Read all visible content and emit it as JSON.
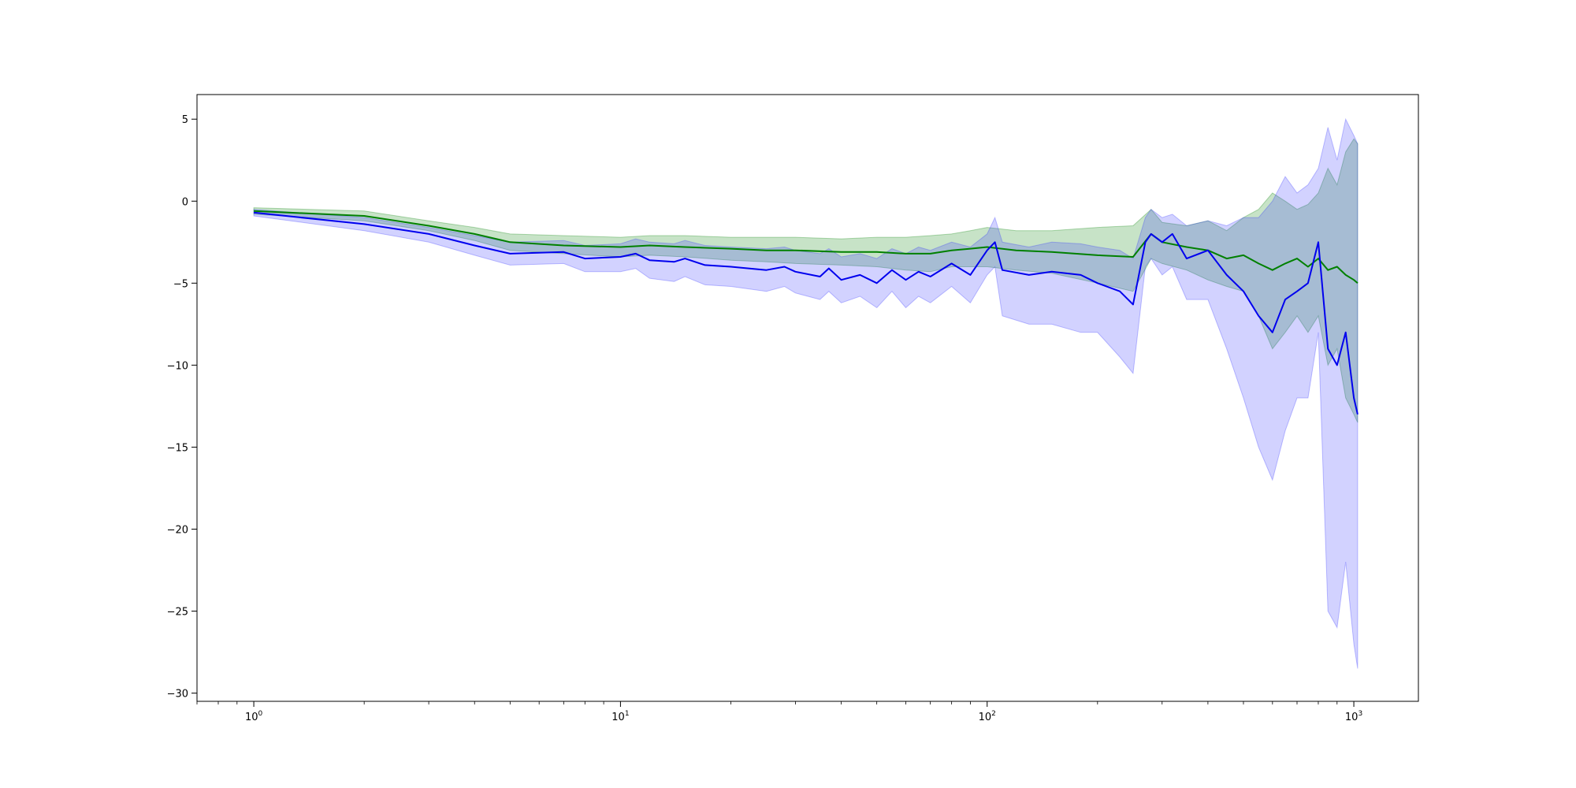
{
  "chart_data": {
    "type": "line",
    "title": "",
    "xlabel": "",
    "ylabel": "",
    "x_scale": "log",
    "xlim": [
      0.7,
      1500
    ],
    "ylim": [
      -30.5,
      6.5
    ],
    "x_ticks": [
      {
        "value": 1,
        "base": "10",
        "exp": "0"
      },
      {
        "value": 10,
        "base": "10",
        "exp": "1"
      },
      {
        "value": 100,
        "base": "10",
        "exp": "2"
      },
      {
        "value": 1000,
        "base": "10",
        "exp": "3"
      }
    ],
    "y_ticks": [
      {
        "value": 5,
        "label": "5"
      },
      {
        "value": 0,
        "label": "0"
      },
      {
        "value": -5,
        "label": "−5"
      },
      {
        "value": -10,
        "label": "−10"
      },
      {
        "value": -15,
        "label": "−15"
      },
      {
        "value": -20,
        "label": "−20"
      },
      {
        "value": -25,
        "label": "−25"
      },
      {
        "value": -30,
        "label": "−30"
      }
    ],
    "grid": false,
    "legend": "none",
    "series": [
      {
        "color": "#008000",
        "band_color": "#008000",
        "x": [
          1,
          2,
          3,
          4,
          5,
          7,
          10,
          12,
          15,
          20,
          25,
          30,
          40,
          50,
          60,
          70,
          80,
          90,
          100,
          120,
          150,
          200,
          250,
          280,
          300,
          350,
          400,
          450,
          500,
          550,
          600,
          650,
          700,
          750,
          800,
          850,
          900,
          950,
          1000,
          1024
        ],
        "y": [
          -0.6,
          -0.9,
          -1.5,
          -2.0,
          -2.5,
          -2.7,
          -2.8,
          -2.7,
          -2.8,
          -2.9,
          -3.0,
          -3.0,
          -3.1,
          -3.1,
          -3.2,
          -3.2,
          -3.0,
          -2.9,
          -2.8,
          -3.0,
          -3.1,
          -3.3,
          -3.4,
          -2.0,
          -2.5,
          -2.8,
          -3.0,
          -3.5,
          -3.3,
          -3.8,
          -4.2,
          -3.8,
          -3.5,
          -4.0,
          -3.5,
          -4.2,
          -4.0,
          -4.5,
          -4.8,
          -5.0
        ],
        "upper": [
          -0.4,
          -0.6,
          -1.2,
          -1.6,
          -2.0,
          -2.1,
          -2.2,
          -2.1,
          -2.1,
          -2.2,
          -2.2,
          -2.2,
          -2.3,
          -2.2,
          -2.2,
          -2.1,
          -2.0,
          -1.8,
          -1.6,
          -1.8,
          -1.8,
          -1.6,
          -1.5,
          -0.5,
          -1.3,
          -1.5,
          -1.2,
          -1.8,
          -1.0,
          -0.5,
          0.5,
          0.0,
          -0.5,
          -0.2,
          0.5,
          2.0,
          1.0,
          3.0,
          3.8,
          3.5
        ],
        "lower": [
          -0.8,
          -1.2,
          -1.8,
          -2.4,
          -3.0,
          -3.2,
          -3.4,
          -3.3,
          -3.4,
          -3.6,
          -3.7,
          -3.8,
          -3.9,
          -4.0,
          -4.2,
          -4.3,
          -4.0,
          -4.0,
          -4.0,
          -4.2,
          -4.4,
          -5.0,
          -5.5,
          -3.5,
          -3.8,
          -4.2,
          -4.8,
          -5.2,
          -5.5,
          -7.0,
          -9.0,
          -8.0,
          -7.0,
          -8.0,
          -7.0,
          -10.0,
          -9.0,
          -12.0,
          -13.0,
          -13.5
        ]
      },
      {
        "color": "#0000ee",
        "band_color": "#3333ff",
        "x": [
          1,
          2,
          3,
          4,
          5,
          7,
          8,
          10,
          11,
          12,
          14,
          15,
          17,
          20,
          25,
          28,
          30,
          35,
          37,
          40,
          45,
          50,
          55,
          60,
          65,
          70,
          80,
          90,
          100,
          105,
          110,
          130,
          150,
          180,
          200,
          230,
          250,
          270,
          280,
          300,
          320,
          350,
          400,
          450,
          500,
          550,
          600,
          650,
          700,
          750,
          800,
          850,
          900,
          950,
          1000,
          1024
        ],
        "y": [
          -0.7,
          -1.4,
          -2.0,
          -2.7,
          -3.2,
          -3.1,
          -3.5,
          -3.4,
          -3.2,
          -3.6,
          -3.7,
          -3.5,
          -3.9,
          -4.0,
          -4.2,
          -4.0,
          -4.3,
          -4.6,
          -4.1,
          -4.8,
          -4.5,
          -5.0,
          -4.2,
          -4.8,
          -4.3,
          -4.6,
          -3.8,
          -4.5,
          -3.0,
          -2.5,
          -4.2,
          -4.5,
          -4.3,
          -4.5,
          -5.0,
          -5.5,
          -6.3,
          -2.5,
          -2.0,
          -2.5,
          -2.0,
          -3.5,
          -3.0,
          -4.5,
          -5.5,
          -7.0,
          -8.0,
          -6.0,
          -5.5,
          -5.0,
          -2.5,
          -9.0,
          -10.0,
          -8.0,
          -12.0,
          -13.0
        ],
        "upper": [
          -0.5,
          -1.0,
          -1.6,
          -2.1,
          -2.5,
          -2.4,
          -2.7,
          -2.6,
          -2.3,
          -2.5,
          -2.6,
          -2.4,
          -2.7,
          -2.8,
          -2.9,
          -2.8,
          -3.0,
          -3.2,
          -2.9,
          -3.4,
          -3.2,
          -3.5,
          -2.9,
          -3.2,
          -2.8,
          -3.0,
          -2.5,
          -2.8,
          -2.0,
          -1.0,
          -2.5,
          -2.8,
          -2.5,
          -2.6,
          -2.8,
          -3.0,
          -3.5,
          -1.0,
          -0.5,
          -1.0,
          -0.8,
          -1.5,
          -1.2,
          -1.5,
          -1.0,
          -1.0,
          0.0,
          1.5,
          0.5,
          1.0,
          2.0,
          4.5,
          2.5,
          5.0,
          4.0,
          3.5
        ],
        "lower": [
          -0.9,
          -1.8,
          -2.5,
          -3.3,
          -3.9,
          -3.8,
          -4.3,
          -4.3,
          -4.1,
          -4.7,
          -4.9,
          -4.6,
          -5.1,
          -5.2,
          -5.5,
          -5.2,
          -5.6,
          -6.0,
          -5.5,
          -6.2,
          -5.8,
          -6.5,
          -5.5,
          -6.5,
          -5.8,
          -6.2,
          -5.2,
          -6.2,
          -4.5,
          -4.0,
          -7.0,
          -7.5,
          -7.5,
          -8.0,
          -8.0,
          -9.5,
          -10.5,
          -4.0,
          -3.5,
          -4.5,
          -4.0,
          -6.0,
          -6.0,
          -9.0,
          -12.0,
          -15.0,
          -17.0,
          -14.0,
          -12.0,
          -12.0,
          -8.0,
          -25.0,
          -26.0,
          -22.0,
          -27.0,
          -28.5
        ]
      }
    ]
  }
}
